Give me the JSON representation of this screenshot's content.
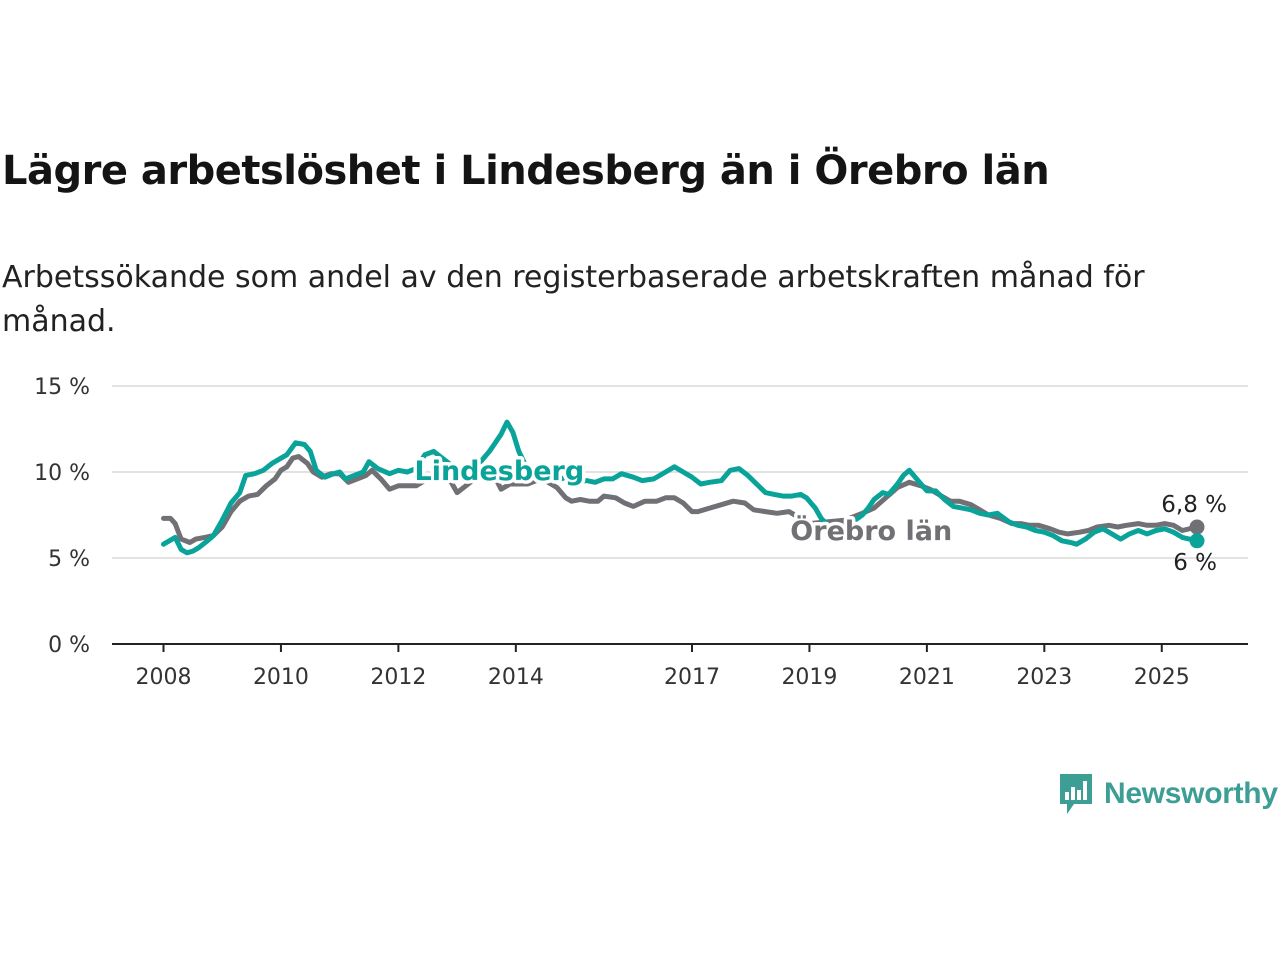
{
  "title": "Lägre arbetslöshet i Lindesberg än i Örebro län",
  "subtitle": "Arbetssökande som andel av den registerbaserade arbetskraften månad för månad.",
  "brand": {
    "name": "Newsworthy",
    "icon": "bar-chart-speech-bubble-icon",
    "color": "#3d9e95"
  },
  "colors": {
    "Lindesberg": "#0aa39a",
    "Örebro län": "#707075",
    "grid": "#d9d9d9",
    "axis": "#222222"
  },
  "chart_data": {
    "type": "line",
    "title": "Lägre arbetslöshet i Lindesberg än i Örebro län",
    "subtitle": "Arbetssökande som andel av den registerbaserade arbetskraften månad för månad.",
    "x_range": [
      2008.0,
      2025.6
    ],
    "ylim": [
      0,
      15
    ],
    "y_ticks": [
      0,
      5,
      10,
      15
    ],
    "y_tick_labels": [
      "0 %",
      "5 %",
      "10 %",
      "15 %"
    ],
    "x_ticks": [
      2008,
      2010,
      2012,
      2014,
      2017,
      2019,
      2021,
      2023,
      2025
    ],
    "x_tick_labels": [
      "2008",
      "2010",
      "2012",
      "2014",
      "2017",
      "2019",
      "2021",
      "2023",
      "2025"
    ],
    "grid": true,
    "legend": "inline labels",
    "series": [
      {
        "name": "Örebro län",
        "end_label": "6,8 %",
        "points": [
          [
            2008.0,
            7.3
          ],
          [
            2008.12,
            7.3
          ],
          [
            2008.2,
            7.0
          ],
          [
            2008.3,
            6.1
          ],
          [
            2008.45,
            5.9
          ],
          [
            2008.55,
            6.1
          ],
          [
            2008.7,
            6.2
          ],
          [
            2008.85,
            6.3
          ],
          [
            2009.0,
            6.8
          ],
          [
            2009.15,
            7.7
          ],
          [
            2009.3,
            8.3
          ],
          [
            2009.45,
            8.6
          ],
          [
            2009.6,
            8.7
          ],
          [
            2009.75,
            9.2
          ],
          [
            2009.9,
            9.6
          ],
          [
            2010.0,
            10.1
          ],
          [
            2010.1,
            10.3
          ],
          [
            2010.2,
            10.8
          ],
          [
            2010.3,
            10.9
          ],
          [
            2010.45,
            10.5
          ],
          [
            2010.55,
            10.0
          ],
          [
            2010.7,
            9.7
          ],
          [
            2010.85,
            9.9
          ],
          [
            2011.0,
            9.9
          ],
          [
            2011.15,
            9.4
          ],
          [
            2011.3,
            9.6
          ],
          [
            2011.45,
            9.8
          ],
          [
            2011.55,
            10.1
          ],
          [
            2011.7,
            9.6
          ],
          [
            2011.85,
            9.0
          ],
          [
            2012.0,
            9.2
          ],
          [
            2012.15,
            9.2
          ],
          [
            2012.3,
            9.2
          ],
          [
            2012.45,
            9.5
          ],
          [
            2012.6,
            9.8
          ],
          [
            2012.75,
            9.7
          ],
          [
            2012.9,
            9.4
          ],
          [
            2013.0,
            8.8
          ],
          [
            2013.15,
            9.2
          ],
          [
            2013.3,
            9.6
          ],
          [
            2013.45,
            9.9
          ],
          [
            2013.6,
            10.0
          ],
          [
            2013.75,
            9.0
          ],
          [
            2013.9,
            9.3
          ],
          [
            2014.05,
            9.3
          ],
          [
            2014.2,
            9.3
          ],
          [
            2014.35,
            9.5
          ],
          [
            2014.5,
            9.5
          ],
          [
            2014.7,
            9.1
          ],
          [
            2014.85,
            8.5
          ],
          [
            2014.95,
            8.3
          ],
          [
            2015.1,
            8.4
          ],
          [
            2015.25,
            8.3
          ],
          [
            2015.4,
            8.3
          ],
          [
            2015.5,
            8.6
          ],
          [
            2015.7,
            8.5
          ],
          [
            2015.85,
            8.2
          ],
          [
            2016.0,
            8.0
          ],
          [
            2016.2,
            8.3
          ],
          [
            2016.4,
            8.3
          ],
          [
            2016.55,
            8.5
          ],
          [
            2016.7,
            8.5
          ],
          [
            2016.85,
            8.2
          ],
          [
            2017.0,
            7.7
          ],
          [
            2017.1,
            7.7
          ],
          [
            2017.3,
            7.9
          ],
          [
            2017.5,
            8.1
          ],
          [
            2017.7,
            8.3
          ],
          [
            2017.9,
            8.2
          ],
          [
            2018.05,
            7.8
          ],
          [
            2018.25,
            7.7
          ],
          [
            2018.45,
            7.6
          ],
          [
            2018.65,
            7.7
          ],
          [
            2018.8,
            7.4
          ],
          [
            2018.9,
            7.2
          ],
          [
            2019.0,
            7.0
          ],
          [
            2019.3,
            7.1
          ],
          [
            2019.6,
            7.2
          ],
          [
            2019.9,
            7.6
          ],
          [
            2020.1,
            7.9
          ],
          [
            2020.3,
            8.5
          ],
          [
            2020.5,
            9.1
          ],
          [
            2020.7,
            9.4
          ],
          [
            2020.9,
            9.2
          ],
          [
            2021.05,
            9.0
          ],
          [
            2021.2,
            8.7
          ],
          [
            2021.4,
            8.3
          ],
          [
            2021.55,
            8.3
          ],
          [
            2021.75,
            8.1
          ],
          [
            2021.9,
            7.8
          ],
          [
            2022.05,
            7.5
          ],
          [
            2022.25,
            7.3
          ],
          [
            2022.45,
            7.0
          ],
          [
            2022.6,
            7.0
          ],
          [
            2022.75,
            6.9
          ],
          [
            2022.9,
            6.9
          ],
          [
            2023.1,
            6.7
          ],
          [
            2023.25,
            6.5
          ],
          [
            2023.4,
            6.4
          ],
          [
            2023.6,
            6.5
          ],
          [
            2023.75,
            6.6
          ],
          [
            2023.9,
            6.8
          ],
          [
            2024.1,
            6.9
          ],
          [
            2024.25,
            6.8
          ],
          [
            2024.4,
            6.9
          ],
          [
            2024.6,
            7.0
          ],
          [
            2024.75,
            6.9
          ],
          [
            2024.9,
            6.9
          ],
          [
            2025.05,
            7.0
          ],
          [
            2025.2,
            6.9
          ],
          [
            2025.35,
            6.6
          ],
          [
            2025.6,
            6.8
          ]
        ]
      },
      {
        "name": "Lindesberg",
        "end_label": "6 %",
        "points": [
          [
            2008.0,
            5.8
          ],
          [
            2008.1,
            6.0
          ],
          [
            2008.2,
            6.2
          ],
          [
            2008.3,
            5.5
          ],
          [
            2008.4,
            5.3
          ],
          [
            2008.5,
            5.4
          ],
          [
            2008.6,
            5.6
          ],
          [
            2008.75,
            6.0
          ],
          [
            2008.85,
            6.3
          ],
          [
            2009.0,
            7.2
          ],
          [
            2009.15,
            8.2
          ],
          [
            2009.3,
            8.8
          ],
          [
            2009.4,
            9.8
          ],
          [
            2009.55,
            9.9
          ],
          [
            2009.7,
            10.1
          ],
          [
            2009.85,
            10.5
          ],
          [
            2010.0,
            10.8
          ],
          [
            2010.1,
            11.0
          ],
          [
            2010.25,
            11.7
          ],
          [
            2010.4,
            11.6
          ],
          [
            2010.5,
            11.2
          ],
          [
            2010.6,
            10.1
          ],
          [
            2010.75,
            9.7
          ],
          [
            2010.9,
            9.9
          ],
          [
            2011.0,
            10.0
          ],
          [
            2011.1,
            9.6
          ],
          [
            2011.25,
            9.8
          ],
          [
            2011.4,
            10.0
          ],
          [
            2011.5,
            10.6
          ],
          [
            2011.65,
            10.2
          ],
          [
            2011.85,
            9.9
          ],
          [
            2012.0,
            10.1
          ],
          [
            2012.15,
            10.0
          ],
          [
            2012.3,
            10.2
          ],
          [
            2012.45,
            11.0
          ],
          [
            2012.6,
            11.2
          ],
          [
            2012.75,
            10.8
          ],
          [
            2012.9,
            10.4
          ],
          [
            2013.0,
            9.9
          ],
          [
            2013.15,
            10.1
          ],
          [
            2013.25,
            10.3
          ],
          [
            2013.4,
            10.6
          ],
          [
            2013.55,
            11.2
          ],
          [
            2013.65,
            11.7
          ],
          [
            2013.75,
            12.2
          ],
          [
            2013.85,
            12.9
          ],
          [
            2013.95,
            12.3
          ],
          [
            2014.05,
            11.2
          ],
          [
            2014.15,
            10.5
          ],
          [
            2014.3,
            10.0
          ],
          [
            2014.45,
            10.1
          ],
          [
            2014.6,
            9.8
          ],
          [
            2014.75,
            9.6
          ],
          [
            2014.9,
            9.7
          ],
          [
            2015.05,
            9.4
          ],
          [
            2015.2,
            9.5
          ],
          [
            2015.35,
            9.4
          ],
          [
            2015.5,
            9.6
          ],
          [
            2015.65,
            9.6
          ],
          [
            2015.8,
            9.9
          ],
          [
            2016.0,
            9.7
          ],
          [
            2016.15,
            9.5
          ],
          [
            2016.35,
            9.6
          ],
          [
            2016.55,
            10.0
          ],
          [
            2016.7,
            10.3
          ],
          [
            2016.85,
            10.0
          ],
          [
            2017.0,
            9.7
          ],
          [
            2017.15,
            9.3
          ],
          [
            2017.3,
            9.4
          ],
          [
            2017.5,
            9.5
          ],
          [
            2017.65,
            10.1
          ],
          [
            2017.8,
            10.2
          ],
          [
            2017.95,
            9.8
          ],
          [
            2018.1,
            9.3
          ],
          [
            2018.25,
            8.8
          ],
          [
            2018.4,
            8.7
          ],
          [
            2018.55,
            8.6
          ],
          [
            2018.7,
            8.6
          ],
          [
            2018.85,
            8.7
          ],
          [
            2018.95,
            8.5
          ],
          [
            2019.1,
            7.9
          ],
          [
            2019.2,
            7.3
          ],
          [
            2019.35,
            6.8
          ],
          [
            2019.5,
            6.8
          ],
          [
            2019.7,
            7.0
          ],
          [
            2019.9,
            7.5
          ],
          [
            2020.0,
            7.9
          ],
          [
            2020.1,
            8.4
          ],
          [
            2020.25,
            8.8
          ],
          [
            2020.35,
            8.7
          ],
          [
            2020.5,
            9.3
          ],
          [
            2020.6,
            9.8
          ],
          [
            2020.7,
            10.1
          ],
          [
            2020.85,
            9.5
          ],
          [
            2021.0,
            8.9
          ],
          [
            2021.15,
            8.9
          ],
          [
            2021.3,
            8.4
          ],
          [
            2021.45,
            8.0
          ],
          [
            2021.6,
            7.9
          ],
          [
            2021.75,
            7.8
          ],
          [
            2021.9,
            7.6
          ],
          [
            2022.05,
            7.5
          ],
          [
            2022.2,
            7.6
          ],
          [
            2022.4,
            7.1
          ],
          [
            2022.55,
            6.9
          ],
          [
            2022.7,
            6.8
          ],
          [
            2022.85,
            6.6
          ],
          [
            2023.0,
            6.5
          ],
          [
            2023.15,
            6.3
          ],
          [
            2023.3,
            6.0
          ],
          [
            2023.45,
            5.9
          ],
          [
            2023.55,
            5.8
          ],
          [
            2023.7,
            6.1
          ],
          [
            2023.85,
            6.5
          ],
          [
            2024.0,
            6.7
          ],
          [
            2024.15,
            6.4
          ],
          [
            2024.3,
            6.1
          ],
          [
            2024.45,
            6.4
          ],
          [
            2024.6,
            6.6
          ],
          [
            2024.75,
            6.4
          ],
          [
            2024.9,
            6.6
          ],
          [
            2025.05,
            6.7
          ],
          [
            2025.2,
            6.5
          ],
          [
            2025.35,
            6.2
          ],
          [
            2025.6,
            6.0
          ]
        ]
      }
    ]
  }
}
